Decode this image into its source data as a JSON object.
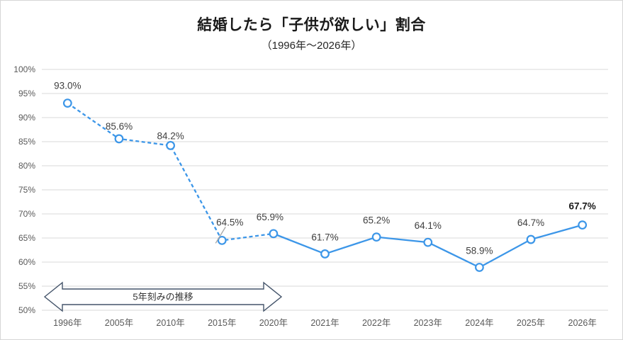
{
  "chart": {
    "title": "結婚したら「子供が欲しい」割合",
    "subtitle": "（1996年～2026年）"
  },
  "chart_data": {
    "type": "line",
    "title": "結婚したら「子供が欲しい」割合",
    "subtitle": "（1996年～2026年）",
    "categories": [
      "1996年",
      "2005年",
      "2010年",
      "2015年",
      "2020年",
      "2021年",
      "2022年",
      "2023年",
      "2024年",
      "2025年",
      "2026年"
    ],
    "series": [
      {
        "name": "結婚したら「子供が欲しい」割合",
        "values": [
          93.0,
          85.6,
          84.2,
          64.5,
          65.9,
          61.7,
          65.2,
          64.1,
          58.9,
          64.7,
          67.7
        ]
      }
    ],
    "data_labels": [
      "93.0%",
      "85.6%",
      "84.2%",
      "64.5%",
      "65.9%",
      "61.7%",
      "65.2%",
      "64.1%",
      "58.9%",
      "64.7%",
      "67.7%"
    ],
    "bold_label_index": 10,
    "leader_line_index": 3,
    "dashed_until_index": 4,
    "ylim": [
      50,
      100
    ],
    "ytick_step": 5,
    "ytick_labels": [
      "50%",
      "55%",
      "60%",
      "65%",
      "70%",
      "75%",
      "80%",
      "85%",
      "90%",
      "95%",
      "100%"
    ],
    "grid": true,
    "legend": false,
    "annotation": {
      "text": "5年刻みの推移",
      "span_from": "1996年",
      "span_to": "2020年"
    },
    "colors": {
      "line": "#3c96e8",
      "marker_fill": "#ffffff",
      "grid": "#d9d9d9",
      "axis_text": "#595959",
      "label_text": "#404040",
      "bold_label_text": "#1a1a1a",
      "annotation_outline": "#44546a",
      "annotation_fill": "#ffffff",
      "annotation_text": "#333333",
      "leader_line": "#a6a6a6"
    }
  }
}
